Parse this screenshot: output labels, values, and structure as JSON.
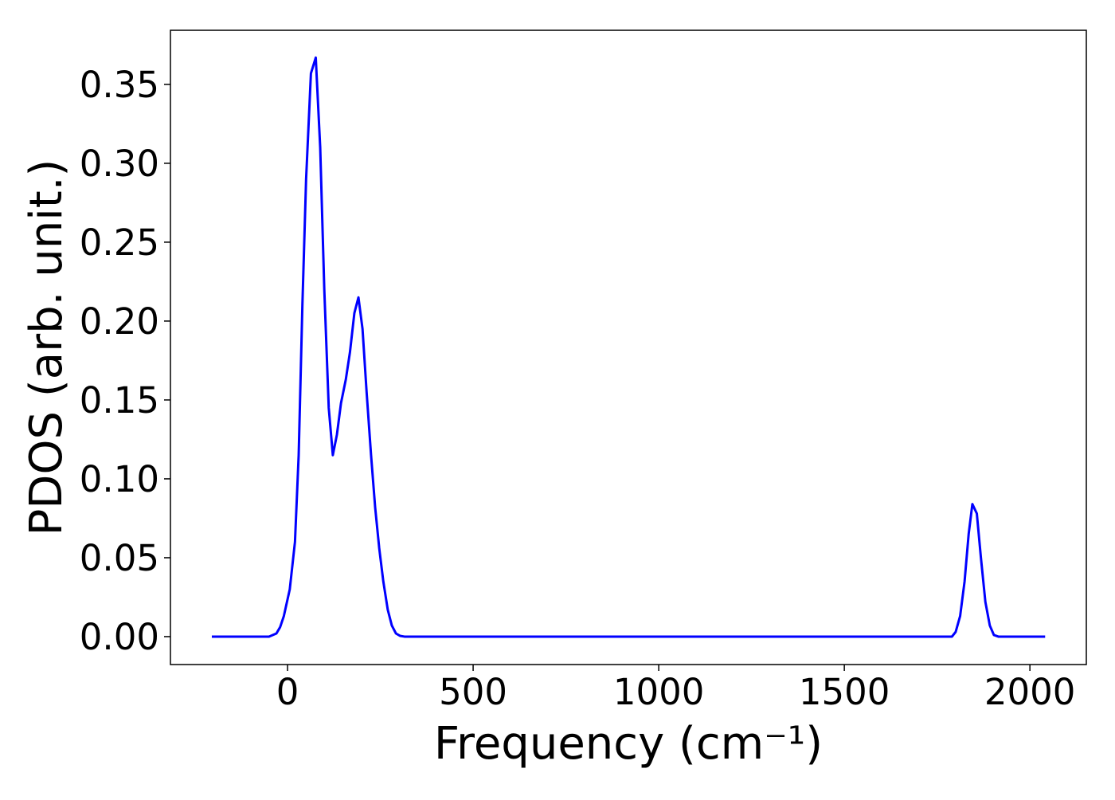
{
  "chart_data": {
    "type": "line",
    "xlabel": "Frequency (cm⁻¹)",
    "ylabel": "PDOS (arb. unit.)",
    "x": [
      -204,
      -50,
      -30,
      -20,
      -10,
      6,
      20,
      30,
      40,
      50,
      63,
      76,
      88,
      99,
      111,
      122,
      133,
      144,
      157,
      168,
      180,
      191,
      202,
      213,
      225,
      236,
      247,
      258,
      270,
      281,
      292,
      303,
      315,
      1790,
      1800,
      1812,
      1824,
      1835,
      1845,
      1857,
      1868,
      1880,
      1892,
      1903,
      1915,
      2041
    ],
    "series": [
      {
        "color": "#0000ff",
        "values": [
          0,
          0,
          0.002,
          0.006,
          0.013,
          0.03,
          0.06,
          0.115,
          0.21,
          0.29,
          0.357,
          0.367,
          0.31,
          0.22,
          0.145,
          0.115,
          0.128,
          0.148,
          0.163,
          0.18,
          0.205,
          0.215,
          0.195,
          0.155,
          0.115,
          0.082,
          0.056,
          0.035,
          0.017,
          0.007,
          0.002,
          0.0005,
          0,
          0,
          0.003,
          0.013,
          0.035,
          0.065,
          0.084,
          0.078,
          0.05,
          0.022,
          0.007,
          0.001,
          0,
          0
        ]
      }
    ],
    "xlim": [
      -315.5,
      2152
    ],
    "ylim": [
      -0.0177,
      0.3843
    ],
    "xticks": [
      0,
      500,
      1000,
      1500,
      2000
    ],
    "yticks": [
      {
        "value": 0,
        "label": "0.00"
      },
      0.05,
      {
        "value": 0.1,
        "label": "0.10"
      },
      0.15,
      {
        "value": 0.2,
        "label": "0.20"
      },
      0.25,
      {
        "value": 0.3,
        "label": "0.30"
      },
      0.35
    ],
    "grid": false
  }
}
